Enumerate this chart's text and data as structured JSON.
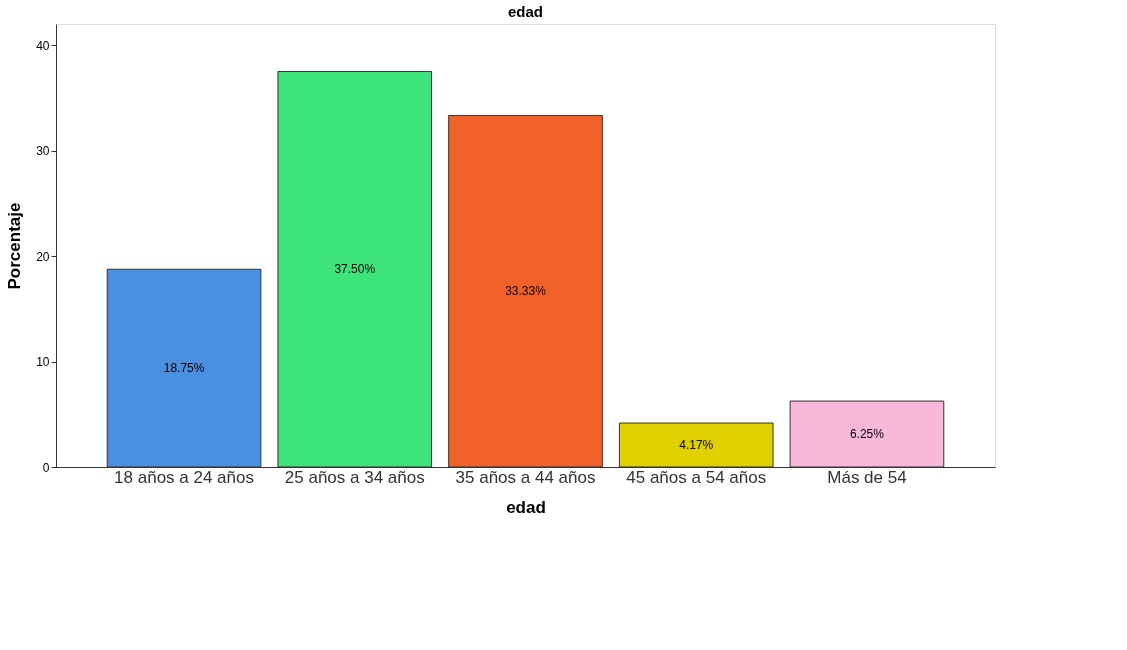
{
  "chart_data": {
    "type": "bar",
    "title": "edad",
    "xlabel": "edad",
    "ylabel": "Porcentaje",
    "categories": [
      "18 años a 24 años",
      "25 años a 34 años",
      "35 años a 44 años",
      "45 años a 54 años",
      "Más de 54"
    ],
    "values": [
      18.75,
      37.5,
      33.33,
      4.17,
      6.25
    ],
    "colors": [
      "#4a8fe0",
      "#3de47c",
      "#f1622b",
      "#e0d000",
      "#f8b8da"
    ],
    "value_labels": [
      "18.75%",
      "37.50%",
      "33.33%",
      "4.17%",
      "6.25%"
    ],
    "ylim": [
      0,
      42
    ],
    "yticks": [
      0,
      10,
      20,
      30,
      40
    ],
    "grid": false
  }
}
